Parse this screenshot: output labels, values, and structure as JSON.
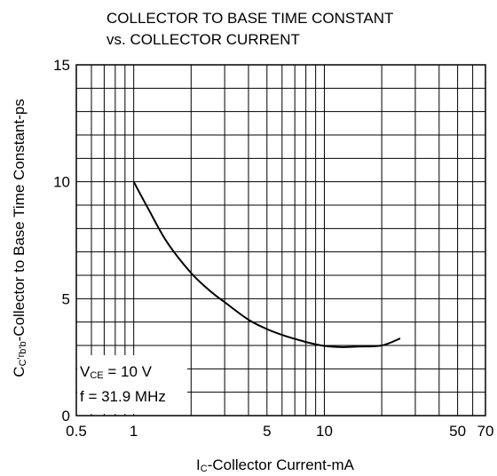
{
  "chart_data": {
    "type": "line",
    "title_line1": "COLLECTOR TO BASE TIME CONSTANT",
    "title_line2": "vs. COLLECTOR CURRENT",
    "xlabel": {
      "main": "I",
      "sub": "C",
      "rest": "-Collector Current-mA"
    },
    "ylabel": {
      "main": "C",
      "sub1": "C",
      "mid": "'r",
      "sub2": "b'b",
      "rest": "-Collector to Base Time Constant-ps"
    },
    "x_scale": "log",
    "xlim": [
      0.5,
      70
    ],
    "ylim": [
      0,
      15
    ],
    "x_ticks": [
      {
        "value": 0.5,
        "label": "0.5"
      },
      {
        "value": 1,
        "label": "1"
      },
      {
        "value": 5,
        "label": "5"
      },
      {
        "value": 10,
        "label": "10"
      },
      {
        "value": 50,
        "label": "50"
      },
      {
        "value": 70,
        "label": "70"
      }
    ],
    "y_ticks": [
      {
        "value": 0,
        "label": "0"
      },
      {
        "value": 5,
        "label": "5"
      },
      {
        "value": 10,
        "label": "10"
      },
      {
        "value": 15,
        "label": "15"
      }
    ],
    "x_grid": [
      0.6,
      0.7,
      0.8,
      0.9,
      1,
      2,
      3,
      4,
      5,
      6,
      7,
      8,
      9,
      10,
      20,
      30,
      40,
      50,
      60
    ],
    "y_grid": [
      1,
      2,
      3,
      4,
      5,
      6,
      7,
      8,
      9,
      10,
      11,
      12,
      13,
      14
    ],
    "grid": true,
    "series": [
      {
        "x": [
          1.0,
          1.2,
          1.5,
          2.0,
          2.5,
          3.0,
          4.0,
          5.0,
          6.0,
          7.0,
          8.0,
          9.0,
          10.0,
          12.0,
          15.0,
          20.0,
          25.0
        ],
        "values": [
          10.0,
          8.8,
          7.4,
          6.1,
          5.35,
          4.85,
          4.1,
          3.7,
          3.45,
          3.28,
          3.15,
          3.05,
          2.98,
          2.93,
          2.95,
          3.0,
          3.3
        ]
      }
    ],
    "annotation": {
      "line1_main": "V",
      "line1_sub": "CE",
      "line1_rest": " = 10 V",
      "line2": "f = 31.9 MHz"
    }
  },
  "colors": {
    "line": "#000000",
    "grid": "#000000",
    "background": "#ffffff"
  }
}
